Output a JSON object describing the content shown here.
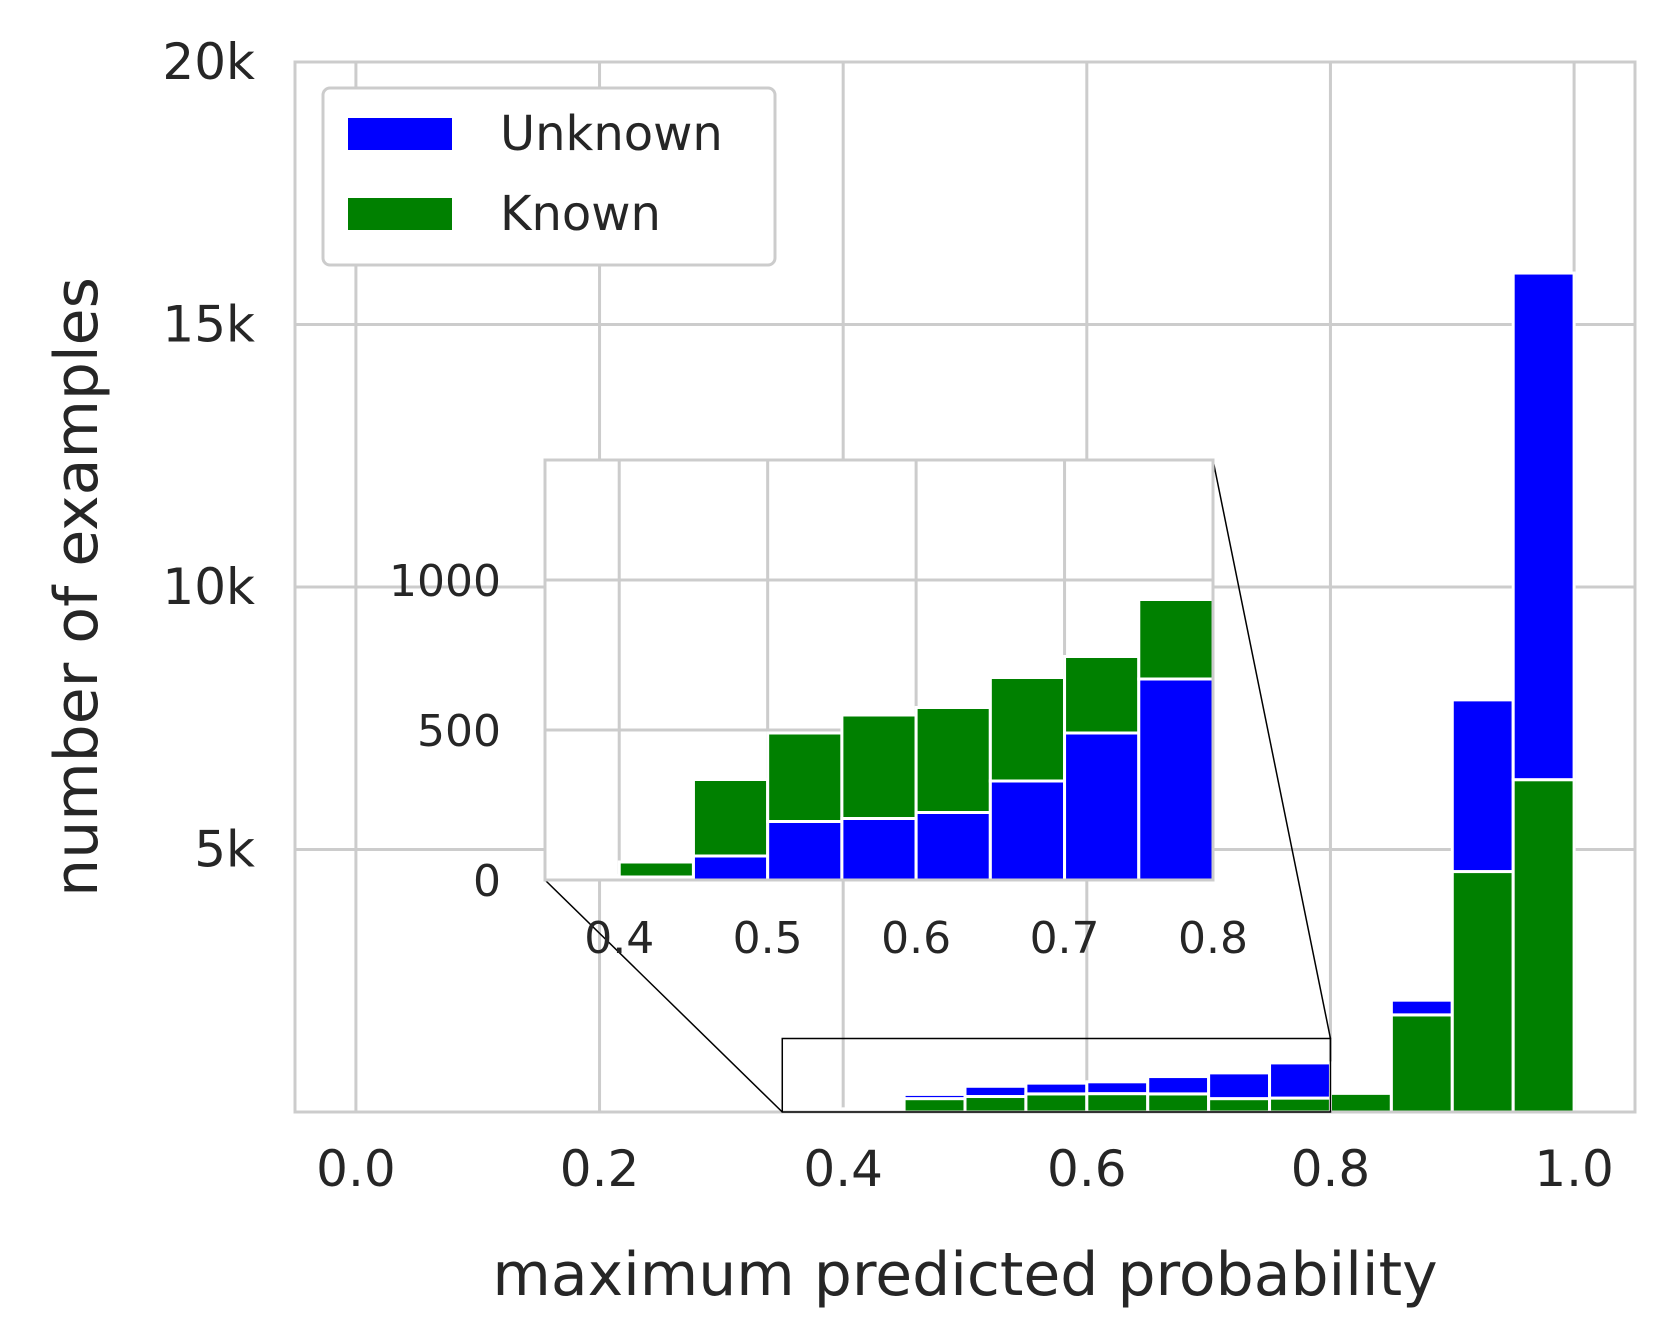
{
  "chart_data": {
    "type": "bar",
    "stacked": true,
    "grid": true,
    "legend_placement": "top-left",
    "xlabel": "maximum predicted probability",
    "ylabel": "number of examples",
    "xlim": [
      -0.05,
      1.05
    ],
    "ylim": [
      0,
      20000
    ],
    "x_ticks": [
      0.0,
      0.2,
      0.4,
      0.6,
      0.8,
      1.0
    ],
    "x_tick_labels": [
      "0.0",
      "0.2",
      "0.4",
      "0.6",
      "0.8",
      "1.0"
    ],
    "y_ticks": [
      5000,
      10000,
      15000,
      20000
    ],
    "y_tick_labels": [
      "5k",
      "10k",
      "15k",
      "20k"
    ],
    "bin_edges": [
      0.35,
      0.4,
      0.45,
      0.5,
      0.55,
      0.6,
      0.65,
      0.7,
      0.75,
      0.8,
      0.85,
      0.9,
      0.95,
      1.0
    ],
    "series": [
      {
        "name": "Known",
        "color": "#008000",
        "values": [
          10,
          50,
          255,
          295,
          345,
          350,
          345,
          255,
          265,
          355,
          1850,
          4580,
          6330
        ]
      },
      {
        "name": "Unknown",
        "color": "#0000ff",
        "values": [
          5,
          10,
          80,
          195,
          205,
          225,
          330,
          490,
          670,
          0,
          280,
          3270,
          9650
        ]
      }
    ],
    "zoom_region": {
      "x": [
        0.35,
        0.8
      ],
      "y": [
        0,
        1400
      ]
    },
    "inset": {
      "xlim": [
        0.35,
        0.8
      ],
      "ylim": [
        0,
        1400
      ],
      "x_ticks": [
        0.4,
        0.5,
        0.6,
        0.7,
        0.8
      ],
      "x_tick_labels": [
        "0.4",
        "0.5",
        "0.6",
        "0.7",
        "0.8"
      ],
      "y_ticks": [
        0,
        500,
        1000
      ],
      "y_tick_labels": [
        "0",
        "500",
        "1000"
      ]
    }
  }
}
